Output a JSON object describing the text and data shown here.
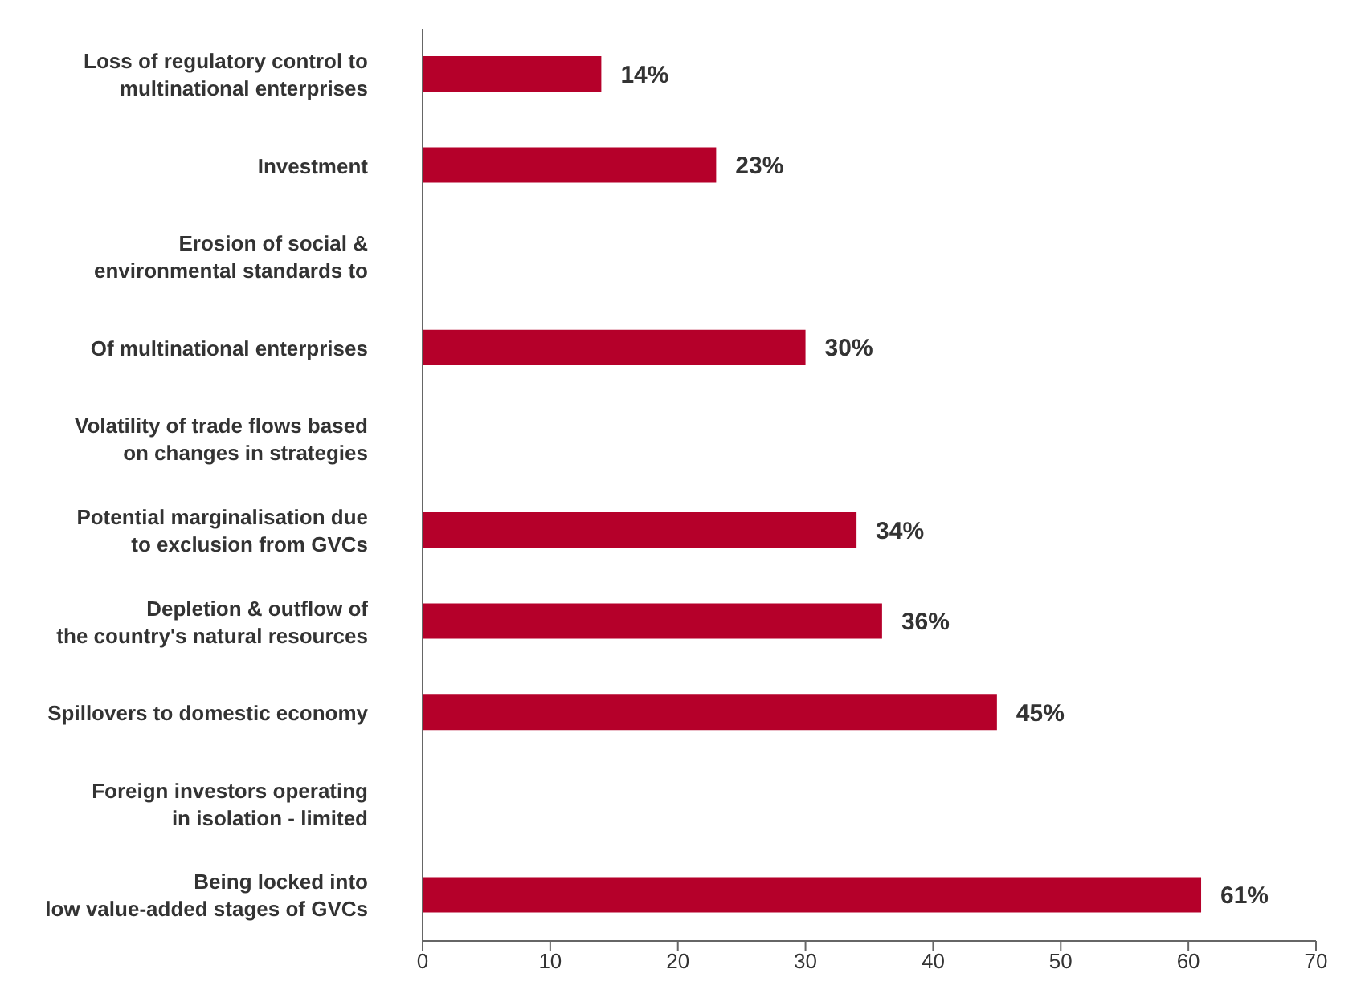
{
  "chart_data": {
    "type": "bar",
    "orientation": "horizontal",
    "categories": [
      "Loss of regulatory control to\nmultinational enterprises",
      "Investment",
      "Erosion of social &\nenvironmental standards to",
      "Of multinational enterprises",
      "Volatility of trade flows based\non changes in strategies",
      "Potential marginalisation due\nto exclusion from GVCs",
      "Depletion & outflow of\nthe country's natural resources",
      "Spillovers to domestic economy",
      "Foreign investors operating\nin isolation - limited",
      "Being locked into\nlow value-added stages of GVCs"
    ],
    "values": [
      14,
      23,
      null,
      30,
      null,
      34,
      36,
      45,
      null,
      61
    ],
    "value_labels": [
      "14%",
      "23%",
      null,
      "30%",
      null,
      "34%",
      "36%",
      "45%",
      null,
      "61%"
    ],
    "color": "#b5002a",
    "xlim": [
      0,
      70
    ],
    "xticks": [
      0,
      10,
      20,
      30,
      40,
      50,
      60,
      70
    ],
    "grid": false,
    "legend": false
  }
}
